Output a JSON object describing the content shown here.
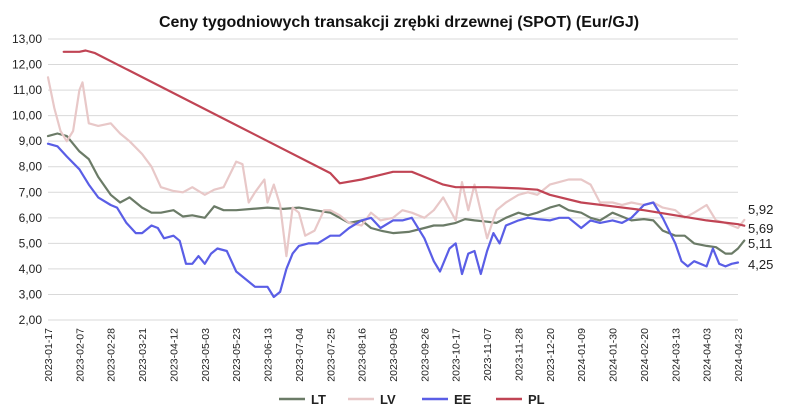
{
  "chart_data": {
    "type": "line",
    "title": "Ceny tygodniowych transakcji zrębki drzewnej (SPOT) (Eur/GJ)",
    "xlabel": "",
    "ylabel": "",
    "ylim": [
      2,
      13
    ],
    "yticks": [
      "13,00",
      "12,00",
      "11,00",
      "10,00",
      "9,00",
      "8,00",
      "7,00",
      "6,00",
      "5,00",
      "4,00",
      "3,00",
      "2,00"
    ],
    "categories": [
      "2023-01-17",
      "2023-02-07",
      "2023-02-28",
      "2023-03-21",
      "2023-04-12",
      "2023-05-03",
      "2023-05-23",
      "2023-06-13",
      "2023-07-04",
      "2023-07-25",
      "2023-08-16",
      "2023-09-05",
      "2023-09-26",
      "2023-10-17",
      "2023-11-07",
      "2023-11-28",
      "2023-12-20",
      "2024-01-09",
      "2024-01-30",
      "2024-02-20",
      "2024-03-13",
      "2024-04-03",
      "2024-04-23"
    ],
    "grid": true,
    "legend_position": "bottom",
    "end_labels": [
      "5,92",
      "5,69",
      "5,11",
      "4,25"
    ],
    "series": [
      {
        "name": "LT",
        "color": "#6b7b67",
        "points": [
          [
            0,
            9.2
          ],
          [
            0.3,
            9.3
          ],
          [
            0.6,
            9.2
          ],
          [
            1.0,
            8.6
          ],
          [
            1.3,
            8.3
          ],
          [
            1.6,
            7.6
          ],
          [
            2.0,
            6.9
          ],
          [
            2.3,
            6.6
          ],
          [
            2.6,
            6.8
          ],
          [
            3.0,
            6.4
          ],
          [
            3.3,
            6.2
          ],
          [
            3.6,
            6.2
          ],
          [
            4.0,
            6.3
          ],
          [
            4.3,
            6.05
          ],
          [
            4.6,
            6.1
          ],
          [
            5.0,
            6.0
          ],
          [
            5.3,
            6.45
          ],
          [
            5.6,
            6.3
          ],
          [
            6.0,
            6.3
          ],
          [
            6.5,
            6.35
          ],
          [
            7.0,
            6.4
          ],
          [
            7.5,
            6.35
          ],
          [
            8.0,
            6.4
          ],
          [
            8.5,
            6.3
          ],
          [
            9.0,
            6.2
          ],
          [
            9.3,
            6.0
          ],
          [
            9.6,
            5.8
          ],
          [
            10.0,
            5.9
          ],
          [
            10.3,
            5.6
          ],
          [
            10.6,
            5.5
          ],
          [
            11.0,
            5.4
          ],
          [
            11.5,
            5.45
          ],
          [
            12.0,
            5.6
          ],
          [
            12.3,
            5.7
          ],
          [
            12.6,
            5.7
          ],
          [
            13.0,
            5.8
          ],
          [
            13.3,
            5.95
          ],
          [
            13.6,
            5.9
          ],
          [
            14.0,
            5.85
          ],
          [
            14.3,
            5.8
          ],
          [
            14.6,
            6.0
          ],
          [
            15.0,
            6.2
          ],
          [
            15.3,
            6.1
          ],
          [
            15.6,
            6.2
          ],
          [
            16.0,
            6.4
          ],
          [
            16.3,
            6.5
          ],
          [
            16.6,
            6.3
          ],
          [
            17.0,
            6.2
          ],
          [
            17.3,
            6.0
          ],
          [
            17.6,
            5.9
          ],
          [
            18.0,
            6.2
          ],
          [
            18.3,
            6.05
          ],
          [
            18.6,
            5.9
          ],
          [
            19.0,
            5.95
          ],
          [
            19.3,
            5.9
          ],
          [
            19.6,
            5.5
          ],
          [
            20.0,
            5.3
          ],
          [
            20.3,
            5.3
          ],
          [
            20.6,
            5.0
          ],
          [
            21.0,
            4.9
          ],
          [
            21.3,
            4.85
          ],
          [
            21.6,
            4.6
          ],
          [
            21.8,
            4.6
          ],
          [
            22.0,
            4.8
          ],
          [
            22.2,
            5.11
          ]
        ]
      },
      {
        "name": "LV",
        "color": "#e8c8c8",
        "points": [
          [
            0,
            11.5
          ],
          [
            0.2,
            10.3
          ],
          [
            0.4,
            9.4
          ],
          [
            0.6,
            9.0
          ],
          [
            0.8,
            9.4
          ],
          [
            1.0,
            11.0
          ],
          [
            1.1,
            11.3
          ],
          [
            1.3,
            9.7
          ],
          [
            1.6,
            9.6
          ],
          [
            2.0,
            9.7
          ],
          [
            2.3,
            9.3
          ],
          [
            2.6,
            9.0
          ],
          [
            3.0,
            8.5
          ],
          [
            3.3,
            8.0
          ],
          [
            3.6,
            7.2
          ],
          [
            4.0,
            7.05
          ],
          [
            4.3,
            7.0
          ],
          [
            4.6,
            7.2
          ],
          [
            5.0,
            6.9
          ],
          [
            5.3,
            7.1
          ],
          [
            5.6,
            7.2
          ],
          [
            6.0,
            8.2
          ],
          [
            6.2,
            8.1
          ],
          [
            6.4,
            6.6
          ],
          [
            6.6,
            7.0
          ],
          [
            6.9,
            7.5
          ],
          [
            7.0,
            6.6
          ],
          [
            7.2,
            7.3
          ],
          [
            7.4,
            6.5
          ],
          [
            7.6,
            4.5
          ],
          [
            7.8,
            6.4
          ],
          [
            8.0,
            6.2
          ],
          [
            8.2,
            5.3
          ],
          [
            8.5,
            5.5
          ],
          [
            8.8,
            6.3
          ],
          [
            9.0,
            6.3
          ],
          [
            9.3,
            6.1
          ],
          [
            9.6,
            5.8
          ],
          [
            10.0,
            5.7
          ],
          [
            10.3,
            6.2
          ],
          [
            10.6,
            5.9
          ],
          [
            11.0,
            6.0
          ],
          [
            11.3,
            6.3
          ],
          [
            11.6,
            6.2
          ],
          [
            12.0,
            6.0
          ],
          [
            12.3,
            6.3
          ],
          [
            12.6,
            6.8
          ],
          [
            13.0,
            5.9
          ],
          [
            13.2,
            7.4
          ],
          [
            13.4,
            6.3
          ],
          [
            13.6,
            7.3
          ],
          [
            14.0,
            5.2
          ],
          [
            14.3,
            6.3
          ],
          [
            14.6,
            6.6
          ],
          [
            15.0,
            6.9
          ],
          [
            15.3,
            7.0
          ],
          [
            15.6,
            6.9
          ],
          [
            16.0,
            7.3
          ],
          [
            16.3,
            7.4
          ],
          [
            16.6,
            7.5
          ],
          [
            17.0,
            7.5
          ],
          [
            17.3,
            7.3
          ],
          [
            17.6,
            6.6
          ],
          [
            18.0,
            6.6
          ],
          [
            18.3,
            6.5
          ],
          [
            18.6,
            6.6
          ],
          [
            19.0,
            6.5
          ],
          [
            19.3,
            6.6
          ],
          [
            19.6,
            6.4
          ],
          [
            20.0,
            6.3
          ],
          [
            20.3,
            6.0
          ],
          [
            20.6,
            6.2
          ],
          [
            21.0,
            6.5
          ],
          [
            21.3,
            5.9
          ],
          [
            21.6,
            5.8
          ],
          [
            22.0,
            5.6
          ],
          [
            22.2,
            5.92
          ]
        ]
      },
      {
        "name": "EE",
        "color": "#5a5ee6",
        "points": [
          [
            0,
            8.9
          ],
          [
            0.3,
            8.8
          ],
          [
            0.6,
            8.4
          ],
          [
            1.0,
            7.9
          ],
          [
            1.3,
            7.3
          ],
          [
            1.6,
            6.8
          ],
          [
            2.0,
            6.5
          ],
          [
            2.2,
            6.4
          ],
          [
            2.5,
            5.8
          ],
          [
            2.8,
            5.4
          ],
          [
            3.0,
            5.4
          ],
          [
            3.3,
            5.7
          ],
          [
            3.5,
            5.6
          ],
          [
            3.7,
            5.2
          ],
          [
            4.0,
            5.3
          ],
          [
            4.2,
            5.1
          ],
          [
            4.4,
            4.2
          ],
          [
            4.6,
            4.2
          ],
          [
            4.8,
            4.5
          ],
          [
            5.0,
            4.2
          ],
          [
            5.2,
            4.6
          ],
          [
            5.4,
            4.8
          ],
          [
            5.7,
            4.7
          ],
          [
            6.0,
            3.9
          ],
          [
            6.3,
            3.6
          ],
          [
            6.6,
            3.3
          ],
          [
            7.0,
            3.3
          ],
          [
            7.2,
            2.9
          ],
          [
            7.4,
            3.1
          ],
          [
            7.6,
            4.0
          ],
          [
            7.8,
            4.6
          ],
          [
            8.0,
            4.9
          ],
          [
            8.3,
            5.0
          ],
          [
            8.6,
            5.0
          ],
          [
            9.0,
            5.3
          ],
          [
            9.3,
            5.3
          ],
          [
            9.6,
            5.6
          ],
          [
            10.0,
            5.9
          ],
          [
            10.3,
            6.0
          ],
          [
            10.6,
            5.6
          ],
          [
            11.0,
            5.9
          ],
          [
            11.3,
            5.9
          ],
          [
            11.6,
            6.0
          ],
          [
            12.0,
            5.2
          ],
          [
            12.3,
            4.3
          ],
          [
            12.5,
            3.9
          ],
          [
            12.8,
            4.8
          ],
          [
            13.0,
            5.0
          ],
          [
            13.2,
            3.8
          ],
          [
            13.4,
            4.6
          ],
          [
            13.6,
            4.7
          ],
          [
            13.8,
            3.8
          ],
          [
            14.0,
            4.7
          ],
          [
            14.2,
            5.4
          ],
          [
            14.4,
            5.0
          ],
          [
            14.6,
            5.7
          ],
          [
            15.0,
            5.9
          ],
          [
            15.3,
            6.0
          ],
          [
            15.6,
            5.95
          ],
          [
            16.0,
            5.9
          ],
          [
            16.3,
            6.0
          ],
          [
            16.6,
            6.0
          ],
          [
            17.0,
            5.6
          ],
          [
            17.3,
            5.9
          ],
          [
            17.6,
            5.8
          ],
          [
            18.0,
            5.9
          ],
          [
            18.3,
            5.8
          ],
          [
            18.6,
            6.0
          ],
          [
            19.0,
            6.5
          ],
          [
            19.3,
            6.6
          ],
          [
            19.6,
            6.0
          ],
          [
            20.0,
            5.0
          ],
          [
            20.2,
            4.3
          ],
          [
            20.4,
            4.1
          ],
          [
            20.6,
            4.3
          ],
          [
            21.0,
            4.1
          ],
          [
            21.2,
            4.8
          ],
          [
            21.4,
            4.2
          ],
          [
            21.6,
            4.1
          ],
          [
            21.8,
            4.2
          ],
          [
            22.0,
            4.25
          ]
        ]
      },
      {
        "name": "PL",
        "color": "#c04454",
        "points": [
          [
            0.5,
            12.5
          ],
          [
            1.0,
            12.5
          ],
          [
            1.2,
            12.55
          ],
          [
            1.5,
            12.45
          ],
          [
            9.0,
            7.75
          ],
          [
            9.3,
            7.35
          ],
          [
            10.0,
            7.5
          ],
          [
            11.0,
            7.8
          ],
          [
            11.6,
            7.8
          ],
          [
            12.0,
            7.6
          ],
          [
            12.6,
            7.3
          ],
          [
            13.0,
            7.2
          ],
          [
            14.0,
            7.2
          ],
          [
            15.0,
            7.15
          ],
          [
            15.6,
            7.1
          ],
          [
            16.0,
            6.9
          ],
          [
            17.0,
            6.6
          ],
          [
            18.0,
            6.45
          ],
          [
            19.0,
            6.3
          ],
          [
            20.0,
            6.1
          ],
          [
            21.0,
            5.9
          ],
          [
            22.0,
            5.75
          ],
          [
            22.2,
            5.69
          ]
        ]
      }
    ]
  }
}
